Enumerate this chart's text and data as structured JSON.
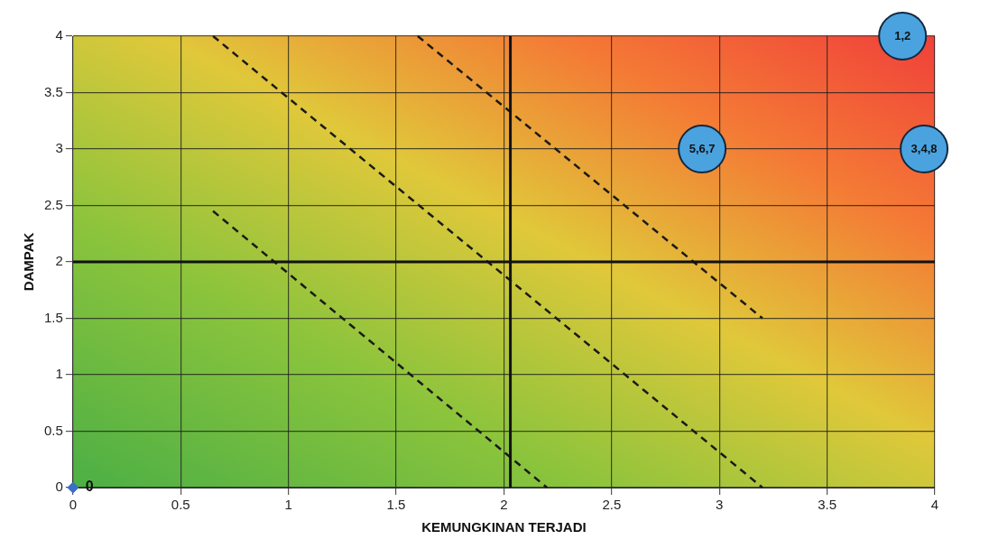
{
  "chart_data": {
    "type": "scatter",
    "xlabel": "KEMUNGKINAN TERJADI",
    "ylabel": "DAMPAK",
    "xlim": [
      0,
      4
    ],
    "xticks": [
      0,
      0.5,
      1,
      1.5,
      2,
      2.5,
      3,
      3.5,
      4
    ],
    "ylim": [
      0,
      4
    ],
    "yticks": [
      0,
      0.5,
      1,
      1.5,
      2,
      2.5,
      3,
      3.5,
      4
    ],
    "grid": true,
    "legend": false,
    "marker": "circle",
    "series": [
      {
        "marker": "diamond",
        "color": "#3a6fc4",
        "x": [
          0
        ],
        "values": [
          0
        ],
        "value_labels": [
          "0"
        ]
      },
      {
        "color": "#4aa3df",
        "x": [
          3.85,
          2.92,
          3.95
        ],
        "values": [
          4,
          3,
          3
        ]
      },
      {
        "type": "line",
        "line_style": "dashed",
        "marker": "none",
        "color": "#1a1a1a",
        "x": [
          0.65,
          2.2
        ],
        "values": [
          2.45,
          0
        ]
      },
      {
        "type": "line",
        "line_style": "dashed",
        "marker": "none",
        "color": "#1a1a1a",
        "x": [
          0.65,
          3.2
        ],
        "values": [
          4,
          0
        ]
      },
      {
        "type": "line",
        "line_style": "dashed",
        "marker": "none",
        "color": "#1a1a1a",
        "x": [
          1.6,
          3.2
        ],
        "values": [
          4,
          1.5
        ]
      }
    ],
    "annotations": [
      {
        "text": "1,2",
        "x": 3.85,
        "y": 4
      },
      {
        "text": "5,6,7",
        "x": 2.92,
        "y": 3
      },
      {
        "text": "3,4,8",
        "x": 3.95,
        "y": 3
      }
    ],
    "ref_lines": [
      {
        "axis": "x",
        "value": 2.03,
        "color": "#111111"
      },
      {
        "axis": "y",
        "value": 2,
        "color": "#111111"
      }
    ]
  }
}
